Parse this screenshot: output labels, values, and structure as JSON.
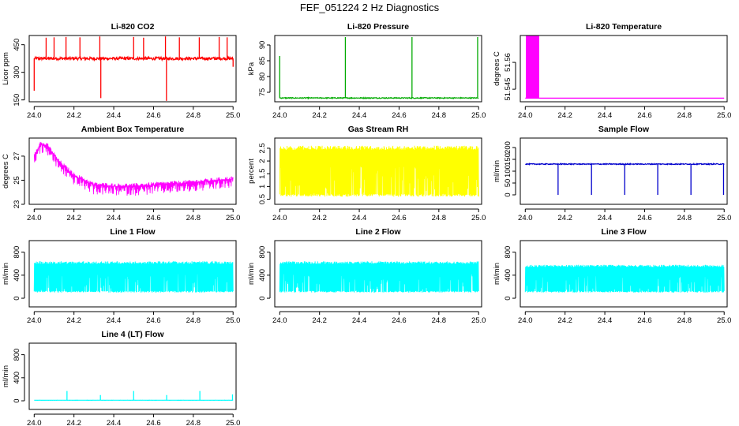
{
  "title": "FEF_051224  2 Hz Diagnostics",
  "chart_data": [
    {
      "id": "co2",
      "type": "line",
      "title": "Li-820 CO2",
      "ylabel": "Licor ppm",
      "color": "#ff0000",
      "xlim": [
        23.975,
        25.015
      ],
      "ylim": [
        140,
        500
      ],
      "xticks": [
        24.0,
        24.2,
        24.4,
        24.6,
        24.8,
        25.0
      ],
      "yticks": [
        150,
        300,
        450
      ],
      "baseline": 375,
      "noise": 8,
      "spikes": [
        {
          "x": 24.0,
          "y": 200
        },
        {
          "x": 24.06,
          "y": 488
        },
        {
          "x": 24.1,
          "y": 490
        },
        {
          "x": 24.16,
          "y": 492
        },
        {
          "x": 24.23,
          "y": 490
        },
        {
          "x": 24.33,
          "y": 495
        },
        {
          "x": 24.335,
          "y": 160
        },
        {
          "x": 24.5,
          "y": 492
        },
        {
          "x": 24.55,
          "y": 488
        },
        {
          "x": 24.66,
          "y": 495
        },
        {
          "x": 24.665,
          "y": 145
        },
        {
          "x": 24.73,
          "y": 490
        },
        {
          "x": 24.83,
          "y": 490
        },
        {
          "x": 24.93,
          "y": 492
        },
        {
          "x": 24.97,
          "y": 490
        },
        {
          "x": 25.0,
          "y": 330
        }
      ]
    },
    {
      "id": "pressure",
      "type": "line",
      "title": "Li-820 Pressure",
      "ylabel": "kPa",
      "color": "#00aa00",
      "xlim": [
        23.975,
        25.015
      ],
      "ylim": [
        72,
        93
      ],
      "xticks": [
        24.0,
        24.2,
        24.4,
        24.6,
        24.8,
        25.0
      ],
      "yticks": [
        75,
        80,
        85,
        90
      ],
      "baseline": 73.2,
      "noise": 0.15,
      "spikes": [
        {
          "x": 24.0,
          "y": 86.5
        },
        {
          "x": 24.33,
          "y": 92.5
        },
        {
          "x": 24.665,
          "y": 92.5
        },
        {
          "x": 24.995,
          "y": 92.5
        }
      ]
    },
    {
      "id": "temperature",
      "type": "block",
      "title": "Li-820 Temperature",
      "ylabel": "degrees C",
      "color": "#ff00ff",
      "xlim": [
        23.975,
        25.015
      ],
      "ylim": [
        51.538,
        51.575
      ],
      "xticks": [
        24.0,
        24.2,
        24.4,
        24.6,
        24.8,
        25.0
      ],
      "yticks": [
        51.545,
        51.56
      ],
      "baseline": 51.54,
      "block": {
        "x0": 24.003,
        "x1": 24.07,
        "top": 51.575
      }
    },
    {
      "id": "ambient",
      "type": "line",
      "title": "Ambient Box Temperature",
      "ylabel": "degrees C",
      "color": "#ff00ff",
      "xlim": [
        23.975,
        25.015
      ],
      "ylim": [
        23,
        28.5
      ],
      "xticks": [
        24.0,
        24.2,
        24.4,
        24.6,
        24.8,
        25.0
      ],
      "yticks": [
        23,
        25,
        27
      ],
      "curve": [
        [
          24.0,
          27.1
        ],
        [
          24.03,
          28.0
        ],
        [
          24.07,
          27.8
        ],
        [
          24.12,
          26.6
        ],
        [
          24.2,
          25.4
        ],
        [
          24.3,
          24.6
        ],
        [
          24.4,
          24.5
        ],
        [
          24.5,
          24.5
        ],
        [
          24.6,
          24.6
        ],
        [
          24.7,
          24.7
        ],
        [
          24.8,
          24.8
        ],
        [
          24.9,
          24.95
        ],
        [
          25.0,
          25.1
        ]
      ],
      "band": 0.8
    },
    {
      "id": "rh",
      "type": "band",
      "title": "Gas Stream RH",
      "ylabel": "percent",
      "color": "#ffff00",
      "xlim": [
        23.975,
        25.015
      ],
      "ylim": [
        0.3,
        2.9
      ],
      "xticks": [
        24.0,
        24.2,
        24.4,
        24.6,
        24.8,
        25.0
      ],
      "yticks": [
        0.5,
        1.0,
        1.5,
        2.0,
        2.5
      ],
      "lo": 0.6,
      "hi": 2.6
    },
    {
      "id": "sample",
      "type": "line",
      "title": "Sample Flow",
      "ylabel": "ml/min",
      "color": "#0000cc",
      "xlim": [
        23.975,
        25.015
      ],
      "ylim": [
        -40,
        240
      ],
      "xticks": [
        24.0,
        24.2,
        24.4,
        24.6,
        24.8,
        25.0
      ],
      "yticks": [
        0,
        50,
        100,
        150,
        200
      ],
      "baseline": 130,
      "noise": 2,
      "spikes": [
        {
          "x": 24.165,
          "y": 0
        },
        {
          "x": 24.333,
          "y": 0
        },
        {
          "x": 24.5,
          "y": 0
        },
        {
          "x": 24.666,
          "y": 0
        },
        {
          "x": 24.833,
          "y": 0
        },
        {
          "x": 24.997,
          "y": 0
        }
      ]
    },
    {
      "id": "line1",
      "type": "band",
      "title": "Line 1 Flow",
      "ylabel": "ml/min",
      "color": "#00ffff",
      "xlim": [
        23.975,
        25.015
      ],
      "ylim": [
        -150,
        1000
      ],
      "xticks": [
        24.0,
        24.2,
        24.4,
        24.6,
        24.8,
        25.0
      ],
      "yticks": [
        0,
        400,
        800
      ],
      "lo": 100,
      "hi": 640
    },
    {
      "id": "line2",
      "type": "band",
      "title": "Line 2 Flow",
      "ylabel": "ml/min",
      "color": "#00ffff",
      "xlim": [
        23.975,
        25.015
      ],
      "ylim": [
        -150,
        1000
      ],
      "xticks": [
        24.0,
        24.2,
        24.4,
        24.6,
        24.8,
        25.0
      ],
      "yticks": [
        0,
        400,
        800
      ],
      "lo": 100,
      "hi": 640
    },
    {
      "id": "line3",
      "type": "band",
      "title": "Line 3 Flow",
      "ylabel": "ml/min",
      "color": "#00ffff",
      "xlim": [
        23.975,
        25.015
      ],
      "ylim": [
        -150,
        1000
      ],
      "xticks": [
        24.0,
        24.2,
        24.4,
        24.6,
        24.8,
        25.0
      ],
      "yticks": [
        0,
        400,
        800
      ],
      "lo": 100,
      "hi": 580
    },
    {
      "id": "line4",
      "type": "line",
      "title": "Line 4 (LT) Flow",
      "ylabel": "ml/min",
      "color": "#00ffff",
      "xlim": [
        23.975,
        25.015
      ],
      "ylim": [
        -150,
        1000
      ],
      "xticks": [
        24.0,
        24.2,
        24.4,
        24.6,
        24.8,
        25.0
      ],
      "yticks": [
        0,
        400,
        800
      ],
      "baseline": 10,
      "noise": 1,
      "spikes": [
        {
          "x": 24.165,
          "y": 170
        },
        {
          "x": 24.333,
          "y": 100
        },
        {
          "x": 24.5,
          "y": 170
        },
        {
          "x": 24.666,
          "y": 100
        },
        {
          "x": 24.833,
          "y": 170
        },
        {
          "x": 24.997,
          "y": 110
        }
      ]
    }
  ]
}
